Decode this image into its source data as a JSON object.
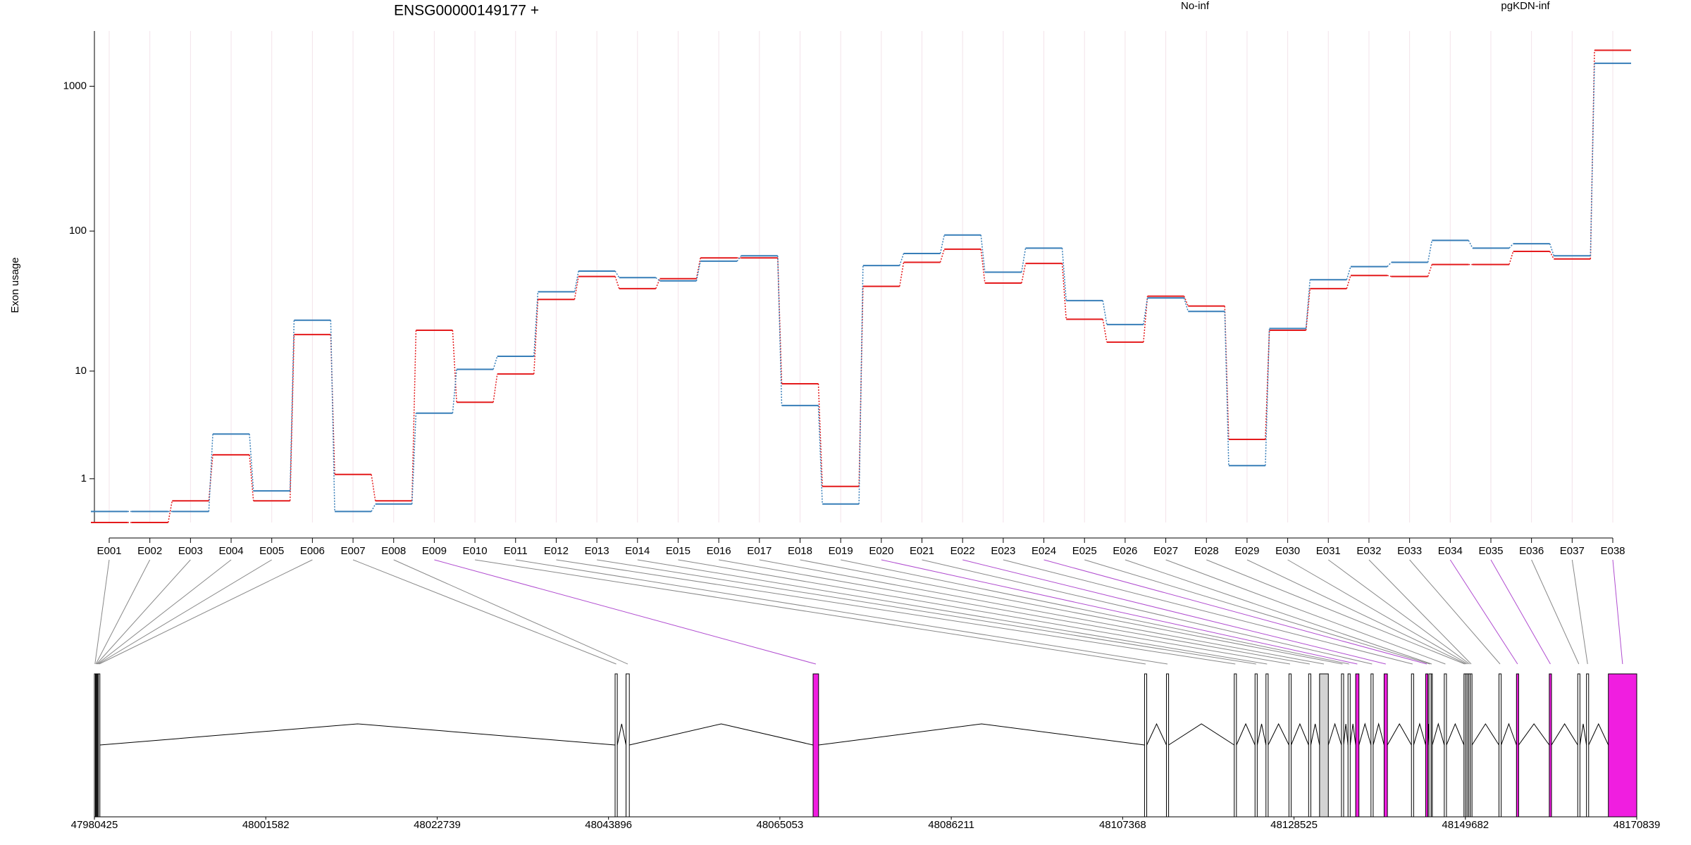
{
  "chart_data": {
    "type": "line",
    "title": "ENSG00000149177 +",
    "ylabel": "Exon usage",
    "yscale": "log1p",
    "categories": [
      "E001",
      "E002",
      "E003",
      "E004",
      "E005",
      "E006",
      "E007",
      "E008",
      "E009",
      "E010",
      "E011",
      "E012",
      "E013",
      "E014",
      "E015",
      "E016",
      "E017",
      "E018",
      "E019",
      "E020",
      "E021",
      "E022",
      "E023",
      "E024",
      "E025",
      "E026",
      "E027",
      "E028",
      "E029",
      "E030",
      "E031",
      "E032",
      "E033",
      "E034",
      "E035",
      "E036",
      "E037",
      "E038"
    ],
    "series": [
      {
        "name": "No-inf",
        "color": "#e41a1c",
        "values": [
          0,
          0,
          0.41,
          1.92,
          0.41,
          18.6,
          1.14,
          0.41,
          20.0,
          5.71,
          9.5,
          33.2,
          48.2,
          39.6,
          46.5,
          65,
          65,
          8.0,
          0.77,
          41.1,
          60.6,
          74.8,
          43.3,
          59.5,
          24.0,
          16.4,
          35.0,
          29.8,
          2.73,
          20.0,
          39.6,
          49.0,
          48.2,
          58.5,
          58.5,
          72.2,
          63.9,
          1769
        ]
      },
      {
        "name": "pgKDN-inf",
        "color": "#377eb8",
        "values": [
          0.19,
          0.19,
          0.19,
          3.06,
          0.65,
          23.6,
          0.19,
          0.34,
          4.65,
          10.3,
          12.9,
          37.6,
          52.6,
          47.3,
          44.9,
          61.7,
          67.3,
          5.38,
          0.34,
          57.5,
          69.8,
          93.9,
          51.7,
          76.1,
          32.6,
          22.0,
          34,
          27.3,
          1.46,
          20.6,
          45.7,
          56.5,
          60.6,
          86.1,
          76.1,
          81.7,
          67.3,
          1438
        ]
      }
    ],
    "ylim": [
      0,
      2400
    ],
    "yticks": [
      1,
      10,
      100,
      1000
    ],
    "grid": true,
    "legend": "top"
  },
  "gene_model": {
    "xlim": [
      47980425,
      48170839
    ],
    "xticks": [
      47980425,
      48001582,
      48022739,
      48043896,
      48065053,
      48086211,
      48107368,
      48128525,
      48149682,
      48170839
    ],
    "exons": [
      {
        "start": 47980425,
        "end": 47980560,
        "fill": "#ffffff"
      },
      {
        "start": 47980560,
        "end": 47980650,
        "fill": "#ffffff"
      },
      {
        "start": 47980650,
        "end": 47980740,
        "fill": "#ffffff"
      },
      {
        "start": 47980740,
        "end": 47980830,
        "fill": "#ffffff"
      },
      {
        "start": 47980830,
        "end": 47980920,
        "fill": "#ffffff"
      },
      {
        "start": 47980920,
        "end": 47981100,
        "fill": "#ffffff"
      },
      {
        "start": 48044709,
        "end": 48044979,
        "fill": "#ffffff"
      },
      {
        "start": 48046059,
        "end": 48046464,
        "fill": "#ffffff"
      },
      {
        "start": 48069153,
        "end": 48069828,
        "fill": "#f01ee0"
      },
      {
        "start": 48110073,
        "end": 48110343,
        "fill": "#ffffff"
      },
      {
        "start": 48112774,
        "end": 48113044,
        "fill": "#ffffff"
      },
      {
        "start": 48121147,
        "end": 48121417,
        "fill": "#ffffff"
      },
      {
        "start": 48123713,
        "end": 48123983,
        "fill": "#ffffff"
      },
      {
        "start": 48125064,
        "end": 48125334,
        "fill": "#ffffff"
      },
      {
        "start": 48127900,
        "end": 48128170,
        "fill": "#ffffff"
      },
      {
        "start": 48130331,
        "end": 48130601,
        "fill": "#ffffff"
      },
      {
        "start": 48131681,
        "end": 48132761,
        "fill": "#d3d3d3"
      },
      {
        "start": 48134382,
        "end": 48134652,
        "fill": "#ffffff"
      },
      {
        "start": 48135192,
        "end": 48135462,
        "fill": "#ffffff"
      },
      {
        "start": 48136138,
        "end": 48136543,
        "fill": "#f01ee0"
      },
      {
        "start": 48138028,
        "end": 48138298,
        "fill": "#ffffff"
      },
      {
        "start": 48139649,
        "end": 48140054,
        "fill": "#f01ee0"
      },
      {
        "start": 48143025,
        "end": 48143295,
        "fill": "#ffffff"
      },
      {
        "start": 48144781,
        "end": 48145051,
        "fill": "#f01ee0"
      },
      {
        "start": 48145186,
        "end": 48145456,
        "fill": "#ffffff"
      },
      {
        "start": 48145456,
        "end": 48145600,
        "fill": "#ffffff"
      },
      {
        "start": 48147077,
        "end": 48147347,
        "fill": "#ffffff"
      },
      {
        "start": 48149508,
        "end": 48149700,
        "fill": "#ffffff"
      },
      {
        "start": 48149700,
        "end": 48149900,
        "fill": "#ffffff"
      },
      {
        "start": 48149900,
        "end": 48150100,
        "fill": "#ffffff"
      },
      {
        "start": 48150100,
        "end": 48150300,
        "fill": "#ffffff"
      },
      {
        "start": 48150300,
        "end": 48150500,
        "fill": "#ffffff"
      },
      {
        "start": 48153829,
        "end": 48154099,
        "fill": "#ffffff"
      },
      {
        "start": 48155990,
        "end": 48156260,
        "fill": "#f01ee0"
      },
      {
        "start": 48160042,
        "end": 48160312,
        "fill": "#f01ee0"
      },
      {
        "start": 48163553,
        "end": 48163823,
        "fill": "#ffffff"
      },
      {
        "start": 48164633,
        "end": 48164903,
        "fill": "#ffffff"
      },
      {
        "start": 48167334,
        "end": 48170839,
        "fill": "#f01ee0"
      }
    ]
  }
}
